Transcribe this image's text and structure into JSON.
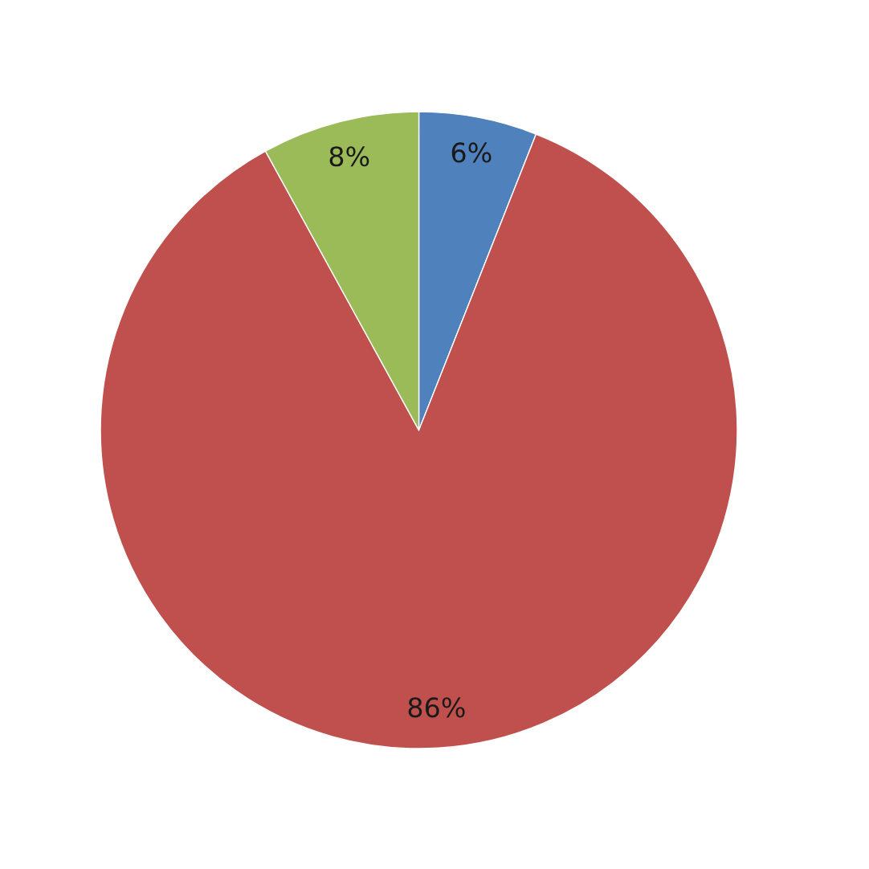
{
  "chart_data": {
    "type": "pie",
    "categories": [
      null,
      null,
      null
    ],
    "values": [
      6,
      86,
      8
    ],
    "colors": [
      "#4f81bd",
      "#c0504d",
      "#9bbb59"
    ],
    "value_labels": [
      "6%",
      "86%",
      "8%"
    ],
    "legend": false
  }
}
